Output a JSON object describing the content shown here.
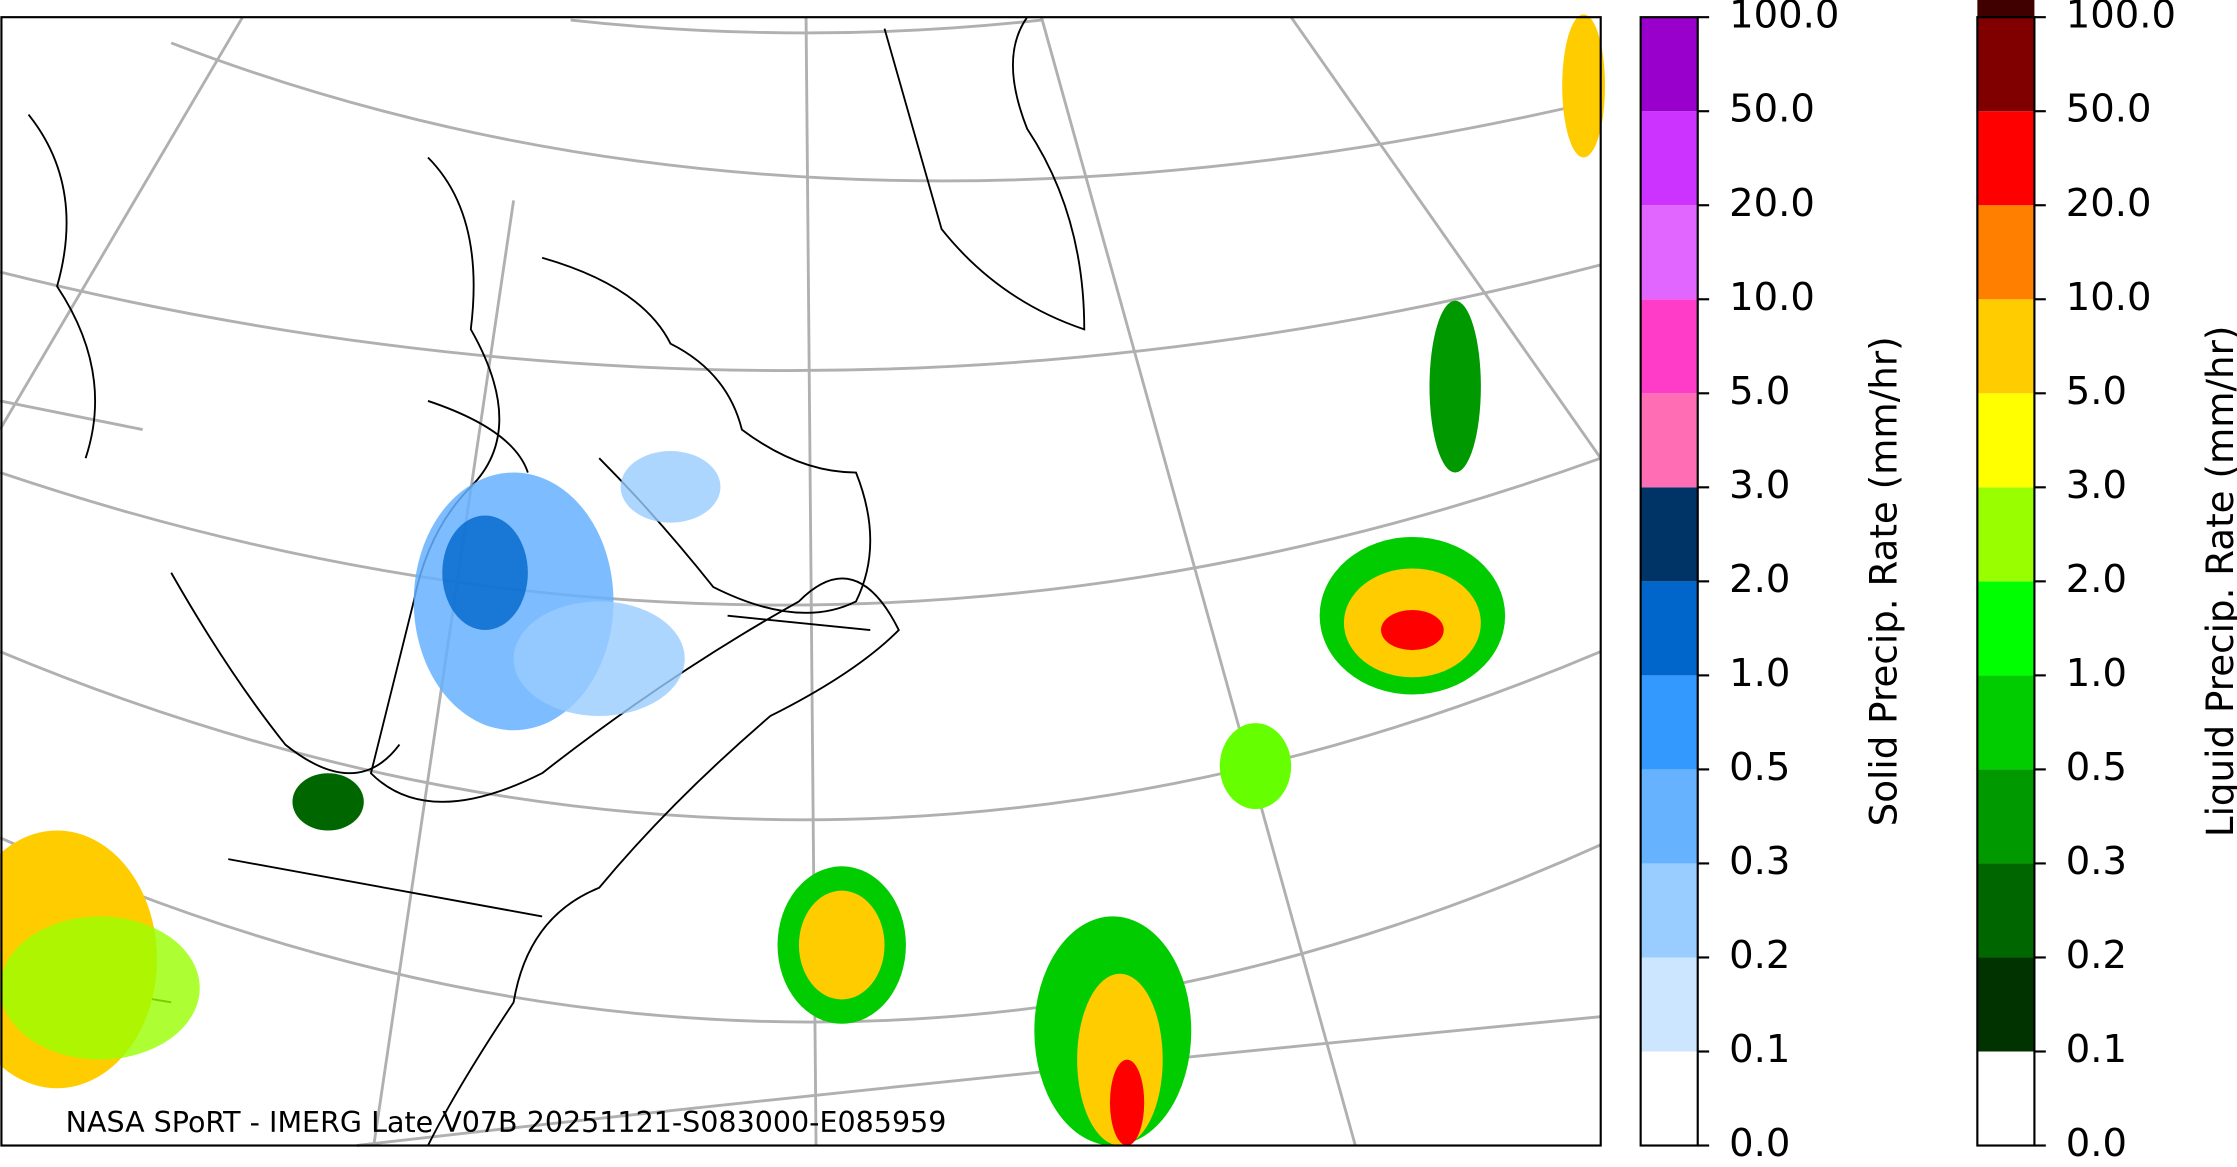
{
  "map": {
    "caption": "NASA SPoRT - IMERG Late V07B 20251121-S083000-E085959"
  },
  "colorbars": [
    {
      "label": "Solid Precip. Rate (mm/hr)",
      "ticks": [
        {
          "value": 0,
          "label": "0.0"
        },
        {
          "value": 0.1,
          "label": "0.1"
        },
        {
          "value": 0.2,
          "label": "0.2"
        },
        {
          "value": 0.3,
          "label": "0.3"
        },
        {
          "value": 0.5,
          "label": "0.5"
        },
        {
          "value": 1,
          "label": "1.0"
        },
        {
          "value": 2,
          "label": "2.0"
        },
        {
          "value": 3,
          "label": "3.0"
        },
        {
          "value": 5,
          "label": "5.0"
        },
        {
          "value": 10,
          "label": "10.0"
        },
        {
          "value": 20,
          "label": "20.0"
        },
        {
          "value": 50,
          "label": "50.0"
        },
        {
          "value": 100,
          "label": "100.0"
        }
      ],
      "colors": [
        "#ffffff",
        "#cce6ff",
        "#99ccff",
        "#66b2ff",
        "#3399ff",
        "#0066cc",
        "#003366",
        "#ff6eb4",
        "#ff3cc8",
        "#e066ff",
        "#cc33ff",
        "#9900cc"
      ]
    },
    {
      "label": "Liquid Precip. Rate (mm/hr)",
      "ticks": [
        {
          "value": 0,
          "label": "0.0"
        },
        {
          "value": 0.1,
          "label": "0.1"
        },
        {
          "value": 0.2,
          "label": "0.2"
        },
        {
          "value": 0.3,
          "label": "0.3"
        },
        {
          "value": 0.5,
          "label": "0.5"
        },
        {
          "value": 1,
          "label": "1.0"
        },
        {
          "value": 2,
          "label": "2.0"
        },
        {
          "value": 3,
          "label": "3.0"
        },
        {
          "value": 5,
          "label": "5.0"
        },
        {
          "value": 10,
          "label": "10.0"
        },
        {
          "value": 20,
          "label": "20.0"
        },
        {
          "value": 50,
          "label": "50.0"
        },
        {
          "value": 100,
          "label": "100.0"
        }
      ],
      "colors": [
        "#ffffff",
        "#003300",
        "#006600",
        "#009900",
        "#00cc00",
        "#00ff00",
        "#99ff00",
        "#ffff00",
        "#ffcc00",
        "#ff8000",
        "#ff0000",
        "#800000",
        "#400000"
      ]
    }
  ]
}
